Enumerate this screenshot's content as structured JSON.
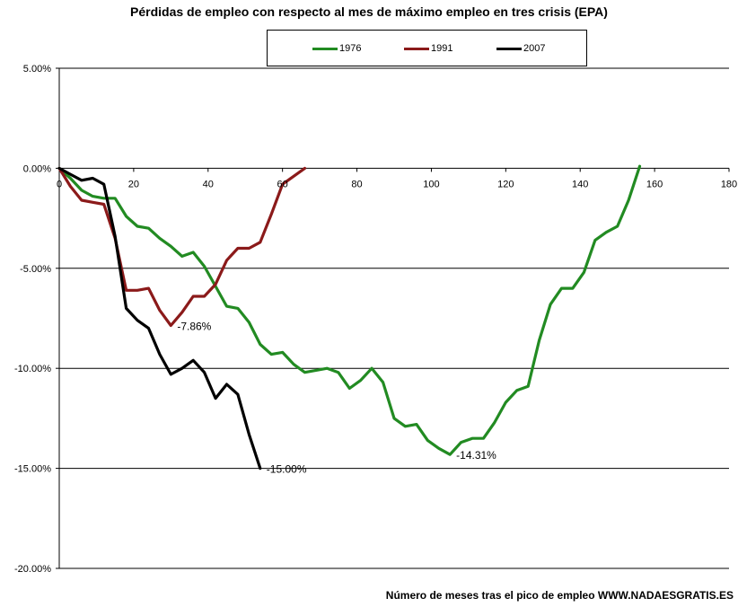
{
  "chart_data": {
    "type": "line",
    "title": "Pérdidas de empleo con respecto al mes de máximo empleo en tres crisis (EPA)",
    "xlabel": "Número de meses tras el pico de empleo WWW.NADAESGRATIS.ES",
    "ylabel": "",
    "xlim": [
      0,
      180
    ],
    "ylim": [
      -20,
      5
    ],
    "x_ticks": [
      "0",
      "20",
      "40",
      "60",
      "80",
      "100",
      "120",
      "140",
      "160",
      "180"
    ],
    "y_ticks": [
      "5.00%",
      "0.00%",
      "-5.00%",
      "-10.00%",
      "-15.00%",
      "-20.00%"
    ],
    "grid": "horizontal",
    "legend": "top",
    "series": [
      {
        "name": "1976",
        "color": "#228b22",
        "x": [
          0,
          3,
          6,
          9,
          12,
          15,
          18,
          21,
          24,
          27,
          30,
          33,
          36,
          39,
          42,
          45,
          48,
          51,
          54,
          57,
          60,
          63,
          66,
          69,
          72,
          75,
          78,
          81,
          84,
          87,
          90,
          93,
          96,
          99,
          102,
          105,
          108,
          111,
          114,
          117,
          120,
          123,
          126,
          129,
          132,
          135,
          138,
          141,
          144,
          147,
          150,
          153,
          156
        ],
        "y": [
          0,
          -0.5,
          -1.1,
          -1.4,
          -1.5,
          -1.5,
          -2.4,
          -2.9,
          -3.0,
          -3.5,
          -3.9,
          -4.4,
          -4.2,
          -4.9,
          -5.9,
          -6.9,
          -7.0,
          -7.7,
          -8.8,
          -9.3,
          -9.2,
          -9.8,
          -10.2,
          -10.1,
          -10.0,
          -10.2,
          -11.0,
          -10.6,
          -10.0,
          -10.7,
          -12.5,
          -12.9,
          -12.8,
          -13.6,
          -14.0,
          -14.31,
          -13.7,
          -13.5,
          -13.5,
          -12.7,
          -11.7,
          -11.1,
          -10.9,
          -8.6,
          -6.8,
          -6.0,
          -6.0,
          -5.2,
          -3.6,
          -3.2,
          -2.9,
          -1.6,
          0.1
        ]
      },
      {
        "name": "1991",
        "color": "#8b1a1a",
        "x": [
          0,
          3,
          6,
          9,
          12,
          15,
          18,
          21,
          24,
          27,
          30,
          33,
          36,
          39,
          42,
          45,
          48,
          51,
          54,
          57,
          60,
          63,
          66
        ],
        "y": [
          0,
          -0.9,
          -1.6,
          -1.7,
          -1.8,
          -3.5,
          -6.1,
          -6.1,
          -6.0,
          -7.1,
          -7.86,
          -7.2,
          -6.4,
          -6.4,
          -5.8,
          -4.6,
          -4.0,
          -4.0,
          -3.7,
          -2.3,
          -0.8,
          -0.4,
          0.0
        ]
      },
      {
        "name": "2007",
        "color": "#000000",
        "x": [
          0,
          3,
          6,
          9,
          12,
          15,
          18,
          21,
          24,
          27,
          30,
          33,
          36,
          39,
          42,
          45,
          48,
          51,
          54
        ],
        "y": [
          0,
          -0.3,
          -0.6,
          -0.5,
          -0.8,
          -3.4,
          -7.0,
          -7.6,
          -8.0,
          -9.3,
          -10.3,
          -10.0,
          -9.6,
          -10.2,
          -11.5,
          -10.8,
          -11.3,
          -13.3,
          -15.0
        ]
      }
    ],
    "annotations": [
      {
        "x": 30,
        "y": -7.86,
        "text": "-7.86%"
      },
      {
        "x": 105,
        "y": -14.31,
        "text": "-14.31%"
      },
      {
        "x": 54,
        "y": -15.0,
        "text": "-15.00%"
      }
    ]
  }
}
